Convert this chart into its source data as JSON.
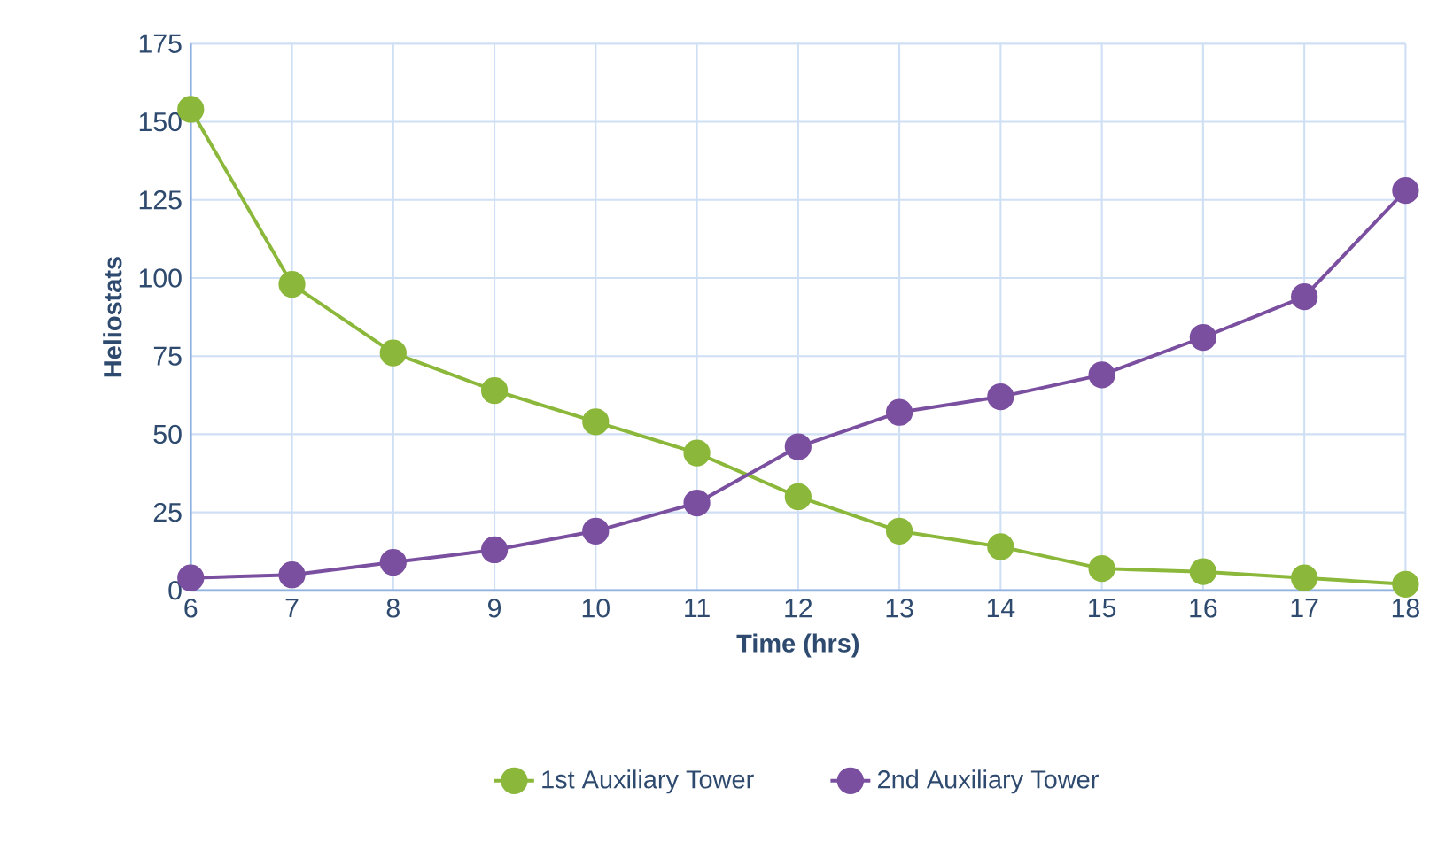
{
  "chart_data": {
    "type": "line",
    "xlabel": "Time (hrs)",
    "ylabel": "Heliostats",
    "x": [
      6,
      7,
      8,
      9,
      10,
      11,
      12,
      13,
      14,
      15,
      16,
      17,
      18
    ],
    "series": [
      {
        "name": "1st Auxiliary Tower",
        "color": "#8bb83a",
        "values": [
          154,
          98,
          76,
          64,
          54,
          44,
          30,
          19,
          14,
          7,
          6,
          4,
          2
        ]
      },
      {
        "name": "2nd Auxiliary Tower",
        "color": "#7b4fa0",
        "values": [
          4,
          5,
          9,
          13,
          19,
          28,
          46,
          57,
          62,
          69,
          81,
          94,
          128
        ]
      }
    ],
    "xlim": [
      6,
      18
    ],
    "xticks": [
      6,
      7,
      8,
      9,
      10,
      11,
      12,
      13,
      14,
      15,
      16,
      17,
      18
    ],
    "ylim": [
      0,
      175
    ],
    "yticks": [
      0,
      25,
      50,
      75,
      100,
      125,
      150,
      175
    ],
    "grid": true,
    "legend": "bottom",
    "marker": "circle",
    "line_style": "solid"
  }
}
